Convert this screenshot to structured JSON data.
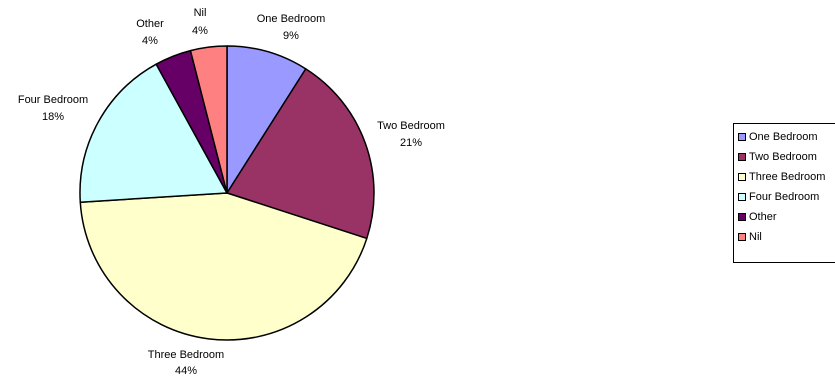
{
  "chart_data": {
    "type": "pie",
    "title": "",
    "categories": [
      "One Bedroom",
      "Two Bedroom",
      "Three Bedroom",
      "Four Bedroom",
      "Other",
      "Nil"
    ],
    "values": [
      9,
      21,
      44,
      18,
      4,
      4
    ],
    "value_labels": [
      "9%",
      "21%",
      "44%",
      "18%",
      "4%",
      "4%"
    ],
    "colors": [
      "#9999ff",
      "#993366",
      "#ffffcc",
      "#ccffff",
      "#660066",
      "#ff8080"
    ],
    "start_angle_deg": 0,
    "direction": "clockwise",
    "legend_position": "right",
    "legend": [
      "One Bedroom",
      "Two Bedroom",
      "Three Bedroom",
      "Four Bedroom",
      "Other",
      "Nil"
    ]
  }
}
